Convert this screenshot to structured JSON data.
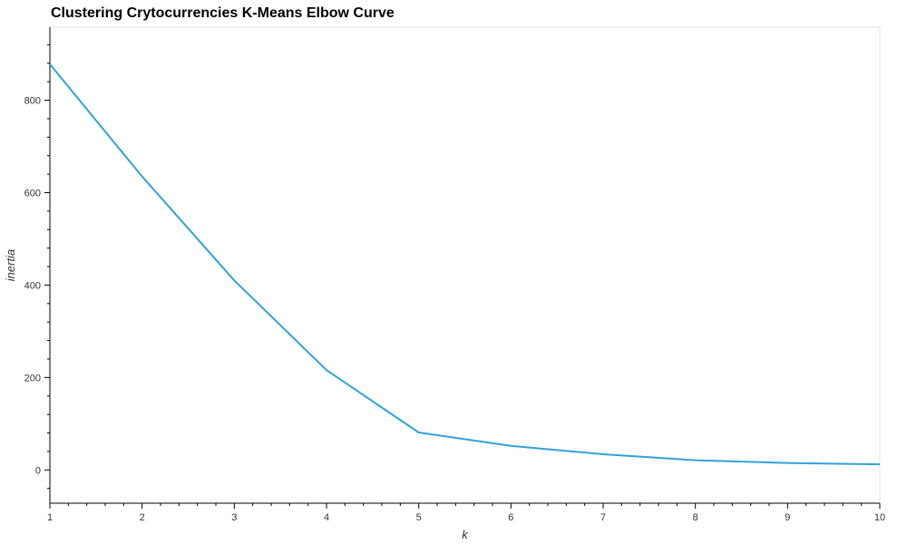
{
  "chart_data": {
    "type": "line",
    "title": "Clustering Crytocurrencies K-Means Elbow Curve",
    "xlabel": "k",
    "ylabel": "inertia",
    "x": [
      1,
      2,
      3,
      4,
      5,
      6,
      7,
      8,
      9,
      10
    ],
    "series": [
      {
        "values": [
          878,
          635,
          410,
          216,
          81,
          52,
          34,
          21,
          15,
          12
        ]
      }
    ],
    "xlim": [
      1,
      10
    ],
    "ylim": [
      -72,
      958
    ],
    "xticks": [
      "1",
      "2",
      "3",
      "4",
      "5",
      "6",
      "7",
      "8",
      "9",
      "10"
    ],
    "yticks": [
      "0",
      "200",
      "400",
      "600",
      "800"
    ],
    "grid": false,
    "line_color": "#30a2da"
  }
}
